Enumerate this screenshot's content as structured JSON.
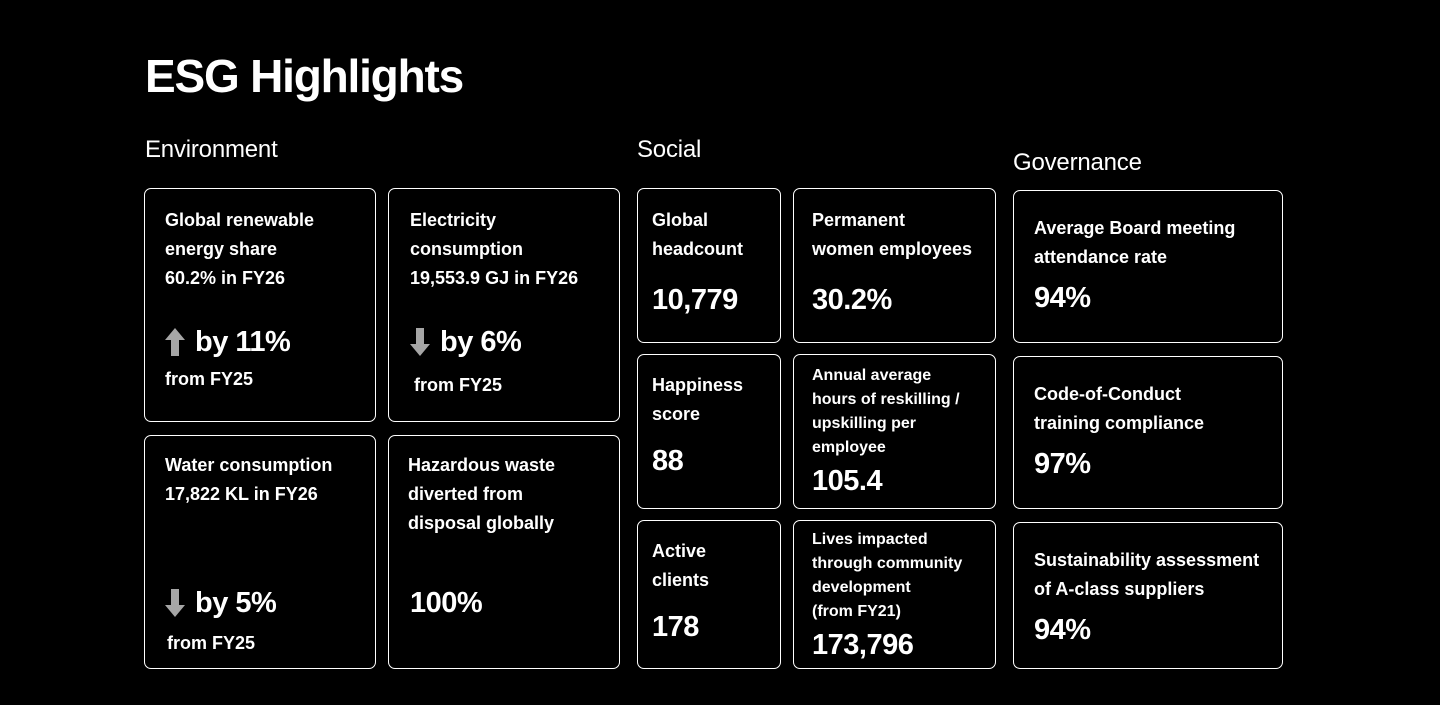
{
  "page": {
    "title": "ESG Highlights"
  },
  "colors": {
    "background": "#000000",
    "text": "#ffffff",
    "border": "#ffffff",
    "arrow": "#a6a6a6"
  },
  "environment": {
    "title": "Environment",
    "renewable": {
      "line1": "Global renewable",
      "line2": "energy share",
      "line3": "60.2% in FY26",
      "change": "by 11%",
      "direction": "up-arrow-icon",
      "from": "from FY25"
    },
    "electricity": {
      "line1": "Electricity",
      "line2": "consumption",
      "line3": "19,553.9 GJ in FY26",
      "change": "by 6%",
      "direction": "down-arrow-icon",
      "from": "from FY25"
    },
    "water": {
      "line1": "Water consumption",
      "line2": "17,822 KL in FY26",
      "change": "by 5%",
      "direction": "down-arrow-icon",
      "from": "from FY25"
    },
    "waste": {
      "line1": "Hazardous waste",
      "line2": "diverted from",
      "line3": "disposal globally",
      "value": "100%"
    }
  },
  "social": {
    "title": "Social",
    "headcount": {
      "line1": "Global",
      "line2": "headcount",
      "value": "10,779"
    },
    "women": {
      "line1": "Permanent",
      "line2": "women employees",
      "value": "30.2%"
    },
    "happiness": {
      "line1": "Happiness",
      "line2": "score",
      "value": "88"
    },
    "reskilling": {
      "line1": "Annual average",
      "line2": "hours of reskilling /",
      "line3": "upskilling per",
      "line4": "employee",
      "value": "105.4"
    },
    "clients": {
      "line1": "Active",
      "line2": "clients",
      "value": "178"
    },
    "lives": {
      "line1": "Lives impacted",
      "line2": "through community",
      "line3": "development",
      "line4": "(from FY21)",
      "value": "173,796"
    }
  },
  "governance": {
    "title": "Governance",
    "board": {
      "line1": "Average Board meeting",
      "line2": "attendance rate",
      "value": "94%"
    },
    "conduct": {
      "line1": "Code-of-Conduct",
      "line2": "training compliance",
      "value": "97%"
    },
    "suppliers": {
      "line1": "Sustainability assessment",
      "line2": "of A-class suppliers",
      "value": "94%"
    }
  }
}
